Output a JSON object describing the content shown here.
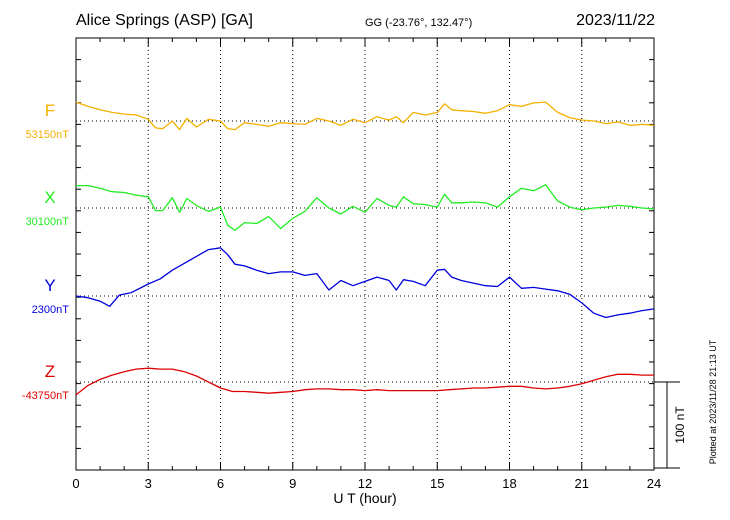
{
  "header": {
    "station": "Alice Springs (ASP)  [GA]",
    "coords": "GG (-23.76°, 132.47°)",
    "date": "2023/11/22"
  },
  "footer": {
    "plotted": "Plotted at 2023/11/28 21:13 UT"
  },
  "chart_data": {
    "type": "line",
    "xlabel": "U T (hour)",
    "xlim": [
      0,
      24
    ],
    "xticks": [
      "0",
      "3",
      "6",
      "9",
      "12",
      "15",
      "18",
      "21",
      "24"
    ],
    "grid": true,
    "scale_bar": {
      "label": "100 nT",
      "value_nT": 100
    },
    "series": [
      {
        "name": "F",
        "baseline_label": "53150nT",
        "baseline_nT": 53150,
        "color": "#f5b000",
        "x": [
          0,
          0.5,
          1,
          1.5,
          2,
          2.5,
          3,
          3.3,
          3.6,
          4,
          4.3,
          4.6,
          5,
          5.5,
          6,
          6.3,
          6.6,
          7,
          7.5,
          8,
          8.5,
          9,
          9.5,
          10,
          10.5,
          11,
          11.5,
          12,
          12.5,
          13,
          13.3,
          13.6,
          14,
          14.5,
          15,
          15.3,
          15.6,
          16,
          16.5,
          17,
          17.5,
          18,
          18.5,
          19,
          19.5,
          20,
          20.5,
          21,
          21.5,
          22,
          22.5,
          23,
          23.5,
          24
        ],
        "y": [
          53172,
          53167,
          53163,
          53160,
          53158,
          53157,
          53152,
          53142,
          53141,
          53150,
          53140,
          53153,
          53143,
          53152,
          53150,
          53141,
          53140,
          53148,
          53146,
          53144,
          53148,
          53147,
          53146,
          53153,
          53150,
          53145,
          53152,
          53148,
          53155,
          53151,
          53155,
          53148,
          53160,
          53157,
          53160,
          53170,
          53163,
          53162,
          53161,
          53159,
          53162,
          53169,
          53167,
          53171,
          53172,
          53160,
          53154,
          53151,
          53150,
          53147,
          53149,
          53145,
          53146,
          53145
        ]
      },
      {
        "name": "X",
        "baseline_label": "30100nT",
        "baseline_nT": 30100,
        "color": "#22ee22",
        "x": [
          0,
          0.5,
          1,
          1.5,
          2,
          2.5,
          3,
          3.3,
          3.6,
          4,
          4.3,
          4.6,
          5,
          5.5,
          6,
          6.3,
          6.6,
          7,
          7.5,
          8,
          8.5,
          9,
          9.5,
          10,
          10.5,
          11,
          11.5,
          12,
          12.5,
          13,
          13.3,
          13.6,
          14,
          14.5,
          15,
          15.3,
          15.6,
          16,
          16.5,
          17,
          17.5,
          18,
          18.5,
          19,
          19.5,
          20,
          20.5,
          21,
          21.5,
          22,
          22.5,
          23,
          23.5,
          24
        ],
        "y": [
          30126,
          30126,
          30123,
          30119,
          30118,
          30115,
          30113,
          30097,
          30097,
          30112,
          30095,
          30111,
          30103,
          30096,
          30101,
          30080,
          30074,
          30083,
          30082,
          30090,
          30076,
          30088,
          30096,
          30112,
          30100,
          30093,
          30102,
          30095,
          30111,
          30103,
          30101,
          30113,
          30105,
          30104,
          30101,
          30116,
          30106,
          30106,
          30107,
          30106,
          30101,
          30113,
          30123,
          30120,
          30127,
          30108,
          30101,
          30098,
          30100,
          30101,
          30103,
          30102,
          30100,
          30099
        ]
      },
      {
        "name": "Y",
        "baseline_label": "2300nT",
        "baseline_nT": 2300,
        "color": "#0000dd",
        "x": [
          0,
          0.5,
          1,
          1.4,
          1.8,
          2.3,
          3,
          3.5,
          4,
          4.5,
          5,
          5.5,
          6,
          6.3,
          6.6,
          7,
          7.5,
          8,
          8.5,
          9,
          9.5,
          10,
          10.5,
          11,
          11.5,
          12,
          12.5,
          13,
          13.3,
          13.6,
          14,
          14.5,
          15,
          15.3,
          15.6,
          16,
          16.5,
          17,
          17.5,
          18,
          18.5,
          19,
          19.5,
          20,
          20.5,
          21,
          21.5,
          22,
          22.5,
          23,
          23.5,
          24
        ],
        "y": [
          2300,
          2298,
          2294,
          2288,
          2301,
          2304,
          2314,
          2320,
          2330,
          2338,
          2346,
          2354,
          2356,
          2348,
          2337,
          2335,
          2330,
          2326,
          2328,
          2328,
          2324,
          2326,
          2307,
          2318,
          2312,
          2317,
          2322,
          2318,
          2307,
          2319,
          2317,
          2312,
          2330,
          2331,
          2322,
          2318,
          2315,
          2312,
          2311,
          2322,
          2309,
          2310,
          2308,
          2306,
          2302,
          2292,
          2280,
          2275,
          2278,
          2280,
          2283,
          2285
        ]
      },
      {
        "name": "Z",
        "baseline_label": "-43750nT",
        "baseline_nT": -43750,
        "color": "#dd0000",
        "x": [
          0,
          0.5,
          1,
          1.5,
          2,
          2.5,
          3,
          3.5,
          4,
          4.5,
          5,
          5.5,
          6,
          6.5,
          7,
          7.5,
          8,
          8.5,
          9,
          9.5,
          10,
          10.5,
          11,
          11.5,
          12,
          12.5,
          13,
          13.5,
          14,
          14.5,
          15,
          15.5,
          16,
          16.5,
          17,
          17.5,
          18,
          18.5,
          19,
          19.5,
          20,
          20.5,
          21,
          21.5,
          22,
          22.5,
          23,
          23.5,
          24
        ],
        "y": [
          -43765,
          -43754,
          -43747,
          -43742,
          -43738,
          -43735,
          -43734,
          -43735,
          -43735,
          -43738,
          -43743,
          -43750,
          -43757,
          -43761,
          -43761,
          -43762,
          -43763,
          -43762,
          -43761,
          -43759,
          -43758,
          -43758,
          -43759,
          -43759,
          -43760,
          -43759,
          -43760,
          -43760,
          -43760,
          -43760,
          -43760,
          -43759,
          -43758,
          -43757,
          -43757,
          -43756,
          -43755,
          -43755,
          -43757,
          -43758,
          -43757,
          -43755,
          -43752,
          -43748,
          -43744,
          -43741,
          -43741,
          -43742,
          -43742
        ]
      }
    ]
  }
}
